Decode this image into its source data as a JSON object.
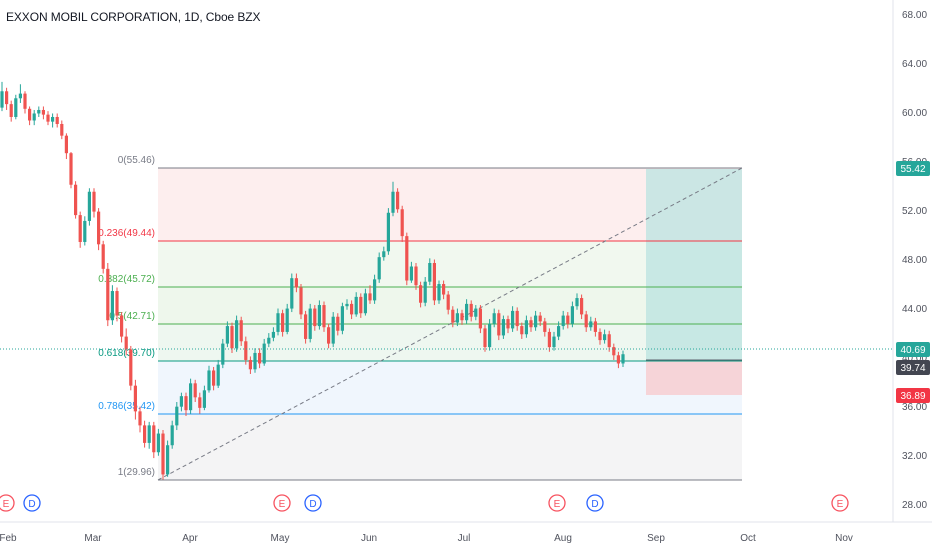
{
  "header": {
    "title": "EXXON MOBIL CORPORATION, 1D, Cboe BZX"
  },
  "colors": {
    "up": "#26a69a",
    "down": "#ef5350",
    "grid": "#e0e3eb",
    "text": "#131722",
    "axis_text": "#50535e",
    "fib_red": "#f23645",
    "fib_green": "#4caf50",
    "fib_blue": "#2196f3",
    "fib_gray": "#787b86",
    "current_price_bg": "#26a69a",
    "stop_bg": "#f23645",
    "entry_bg": "#434651"
  },
  "chart_data": {
    "type": "candlestick",
    "y_axis": {
      "range": [
        26.5,
        70.5
      ],
      "ticks": [
        "28.00",
        "32.00",
        "36.00",
        "40.00",
        "44.00",
        "48.00",
        "52.00",
        "56.00",
        "60.00",
        "64.00",
        "68.00"
      ]
    },
    "x_axis": {
      "labels": [
        "Feb",
        "Mar",
        "Apr",
        "May",
        "Jun",
        "Jul",
        "Aug",
        "Sep",
        "Oct",
        "Nov"
      ]
    },
    "price_labels": [
      {
        "text": "55.42",
        "kind": "target"
      },
      {
        "text": "40.69",
        "kind": "current"
      },
      {
        "text": "39.74",
        "kind": "entry"
      },
      {
        "text": "36.89",
        "kind": "stop"
      }
    ],
    "fibonacci": {
      "levels": [
        {
          "label": "0(55.46)",
          "price": 55.46,
          "color": "gray"
        },
        {
          "label": "0.236(49.44)",
          "price": 49.44,
          "color": "red"
        },
        {
          "label": "0.382(45.72)",
          "price": 45.72,
          "color": "green"
        },
        {
          "label": "0.5(42.71)",
          "price": 42.71,
          "color": "green"
        },
        {
          "label": "0.618(39.70)",
          "price": 39.7,
          "color": "teal"
        },
        {
          "label": "0.786(35.42)",
          "price": 35.42,
          "color": "blue"
        },
        {
          "label": "1(29.96)",
          "price": 29.96,
          "color": "gray"
        }
      ]
    },
    "position": {
      "entry": 39.74,
      "target": 55.42,
      "stop": 36.89
    },
    "events": [
      {
        "letter": "E",
        "kind": "earnings"
      },
      {
        "letter": "D",
        "kind": "dividend"
      },
      {
        "letter": "E",
        "kind": "earnings"
      },
      {
        "letter": "D",
        "kind": "dividend"
      },
      {
        "letter": "E",
        "kind": "earnings"
      },
      {
        "letter": "D",
        "kind": "dividend"
      },
      {
        "letter": "E",
        "kind": "earnings"
      }
    ],
    "candles": [
      [
        61.8,
        63.2,
        64.0,
        61.5
      ],
      [
        63.2,
        62.1,
        63.5,
        61.6
      ],
      [
        62.1,
        61.0,
        62.4,
        60.6
      ],
      [
        61.0,
        62.6,
        62.9,
        60.8
      ],
      [
        62.6,
        63.0,
        63.8,
        62.2
      ],
      [
        63.0,
        61.7,
        63.2,
        61.3
      ],
      [
        61.7,
        60.7,
        61.9,
        60.3
      ],
      [
        60.7,
        61.3,
        61.6,
        60.3
      ],
      [
        61.3,
        61.6,
        61.9,
        61.0
      ],
      [
        61.6,
        61.2,
        61.9,
        60.8
      ],
      [
        61.2,
        60.6,
        61.5,
        60.3
      ],
      [
        60.6,
        61.0,
        61.3,
        60.1
      ],
      [
        61.0,
        60.4,
        61.3,
        60.1
      ],
      [
        60.4,
        59.4,
        60.7,
        59.1
      ],
      [
        59.4,
        57.9,
        59.6,
        57.4
      ],
      [
        57.9,
        55.2,
        58.0,
        54.9
      ],
      [
        55.2,
        52.6,
        55.5,
        52.3
      ],
      [
        52.6,
        50.3,
        52.9,
        49.8
      ],
      [
        50.3,
        52.1,
        52.5,
        50.0
      ],
      [
        52.1,
        54.6,
        54.9,
        51.7
      ],
      [
        54.6,
        52.9,
        54.9,
        52.4
      ],
      [
        52.9,
        50.1,
        53.2,
        49.6
      ],
      [
        50.1,
        48.0,
        50.4,
        47.6
      ],
      [
        48.0,
        43.6,
        48.5,
        43.1
      ],
      [
        43.6,
        46.1,
        46.6,
        43.2
      ],
      [
        46.1,
        44.0,
        46.4,
        43.5
      ],
      [
        44.0,
        42.2,
        44.3,
        41.7
      ],
      [
        42.2,
        41.1,
        42.9,
        40.6
      ],
      [
        41.1,
        38.0,
        41.4,
        37.6
      ],
      [
        38.0,
        35.8,
        38.5,
        35.1
      ],
      [
        35.8,
        34.6,
        36.2,
        34.0
      ],
      [
        34.6,
        33.1,
        35.0,
        32.7
      ],
      [
        33.1,
        34.6,
        34.9,
        32.6
      ],
      [
        34.6,
        32.3,
        34.9,
        31.8
      ],
      [
        32.3,
        33.9,
        34.3,
        32.0
      ],
      [
        33.9,
        30.4,
        34.2,
        29.96
      ],
      [
        30.4,
        32.9,
        33.3,
        30.2
      ],
      [
        32.9,
        34.6,
        35.0,
        32.6
      ],
      [
        34.6,
        36.2,
        36.6,
        34.2
      ],
      [
        36.2,
        37.1,
        37.4,
        35.8
      ],
      [
        37.1,
        35.9,
        37.4,
        35.4
      ],
      [
        35.9,
        38.2,
        38.6,
        35.6
      ],
      [
        38.2,
        37.0,
        38.5,
        36.6
      ],
      [
        37.0,
        36.1,
        37.4,
        35.6
      ],
      [
        36.1,
        37.6,
        38.0,
        35.9
      ],
      [
        37.6,
        39.3,
        39.7,
        37.4
      ],
      [
        39.3,
        38.0,
        39.6,
        37.6
      ],
      [
        38.0,
        39.8,
        40.2,
        37.8
      ],
      [
        39.8,
        41.6,
        42.0,
        39.5
      ],
      [
        41.6,
        43.1,
        43.5,
        41.3
      ],
      [
        43.1,
        41.2,
        43.4,
        40.8
      ],
      [
        41.2,
        43.6,
        44.0,
        40.9
      ],
      [
        43.6,
        41.8,
        43.9,
        41.4
      ],
      [
        41.8,
        40.2,
        42.2,
        39.8
      ],
      [
        40.2,
        39.4,
        40.5,
        39.0
      ],
      [
        39.4,
        40.8,
        41.2,
        39.1
      ],
      [
        40.8,
        39.9,
        41.2,
        39.5
      ],
      [
        39.9,
        41.6,
        42.0,
        39.7
      ],
      [
        41.6,
        42.1,
        42.5,
        41.3
      ],
      [
        42.1,
        42.6,
        43.0,
        41.8
      ],
      [
        42.6,
        44.2,
        44.6,
        42.3
      ],
      [
        44.2,
        42.6,
        44.5,
        42.2
      ],
      [
        42.6,
        44.6,
        45.0,
        42.4
      ],
      [
        44.6,
        47.2,
        47.6,
        44.3
      ],
      [
        47.2,
        46.4,
        47.6,
        46.0
      ],
      [
        46.4,
        44.1,
        46.7,
        43.7
      ],
      [
        44.1,
        42.0,
        44.4,
        41.6
      ],
      [
        42.0,
        44.6,
        45.0,
        41.7
      ],
      [
        44.6,
        43.1,
        44.9,
        42.7
      ],
      [
        43.1,
        44.9,
        45.3,
        42.8
      ],
      [
        44.9,
        43.0,
        45.2,
        42.6
      ],
      [
        43.0,
        41.6,
        43.3,
        41.2
      ],
      [
        41.6,
        43.9,
        44.3,
        41.3
      ],
      [
        43.9,
        42.7,
        44.2,
        42.3
      ],
      [
        42.7,
        44.8,
        45.1,
        42.4
      ],
      [
        44.8,
        45.0,
        45.4,
        44.5
      ],
      [
        45.0,
        44.1,
        45.3,
        43.7
      ],
      [
        44.1,
        45.6,
        46.0,
        43.9
      ],
      [
        45.6,
        44.2,
        45.9,
        43.8
      ],
      [
        44.2,
        45.9,
        46.3,
        44.0
      ],
      [
        45.9,
        45.3,
        46.6,
        45.0
      ],
      [
        45.3,
        47.1,
        47.5,
        45.0
      ],
      [
        47.1,
        49.0,
        49.4,
        46.8
      ],
      [
        49.0,
        49.5,
        49.9,
        48.7
      ],
      [
        49.5,
        52.8,
        53.2,
        49.2
      ],
      [
        52.8,
        54.6,
        55.46,
        52.5
      ],
      [
        54.6,
        53.1,
        54.9,
        52.8
      ],
      [
        53.1,
        50.8,
        53.4,
        50.3
      ],
      [
        50.8,
        47.0,
        51.1,
        46.6
      ],
      [
        47.0,
        48.2,
        48.6,
        46.8
      ],
      [
        48.2,
        46.6,
        48.5,
        46.2
      ],
      [
        46.6,
        45.1,
        46.9,
        44.7
      ],
      [
        45.1,
        46.9,
        47.3,
        44.8
      ],
      [
        46.9,
        48.5,
        48.9,
        46.6
      ],
      [
        48.5,
        45.3,
        48.8,
        44.9
      ],
      [
        45.3,
        46.7,
        47.0,
        45.0
      ],
      [
        46.7,
        45.8,
        47.0,
        45.4
      ],
      [
        45.8,
        44.5,
        46.1,
        44.1
      ],
      [
        44.5,
        43.4,
        44.8,
        43.0
      ],
      [
        43.4,
        44.2,
        44.6,
        43.1
      ],
      [
        44.2,
        43.6,
        44.5,
        43.2
      ],
      [
        43.6,
        45.0,
        45.4,
        43.3
      ],
      [
        45.0,
        43.9,
        45.3,
        43.5
      ],
      [
        43.9,
        44.6,
        44.9,
        43.6
      ],
      [
        44.6,
        42.9,
        44.9,
        42.5
      ],
      [
        42.9,
        41.3,
        43.2,
        40.9
      ],
      [
        41.3,
        43.3,
        43.7,
        41.0
      ],
      [
        43.3,
        44.2,
        44.6,
        43.0
      ],
      [
        44.2,
        42.3,
        44.5,
        41.9
      ],
      [
        42.3,
        43.7,
        44.0,
        42.0
      ],
      [
        43.7,
        42.9,
        44.0,
        42.5
      ],
      [
        42.9,
        44.4,
        44.8,
        42.6
      ],
      [
        44.4,
        43.1,
        44.7,
        42.7
      ],
      [
        43.1,
        42.4,
        43.4,
        42.0
      ],
      [
        42.4,
        43.6,
        44.0,
        42.1
      ],
      [
        43.6,
        43.0,
        43.9,
        42.6
      ],
      [
        43.0,
        44.0,
        44.4,
        42.7
      ],
      [
        44.0,
        43.5,
        44.3,
        43.1
      ],
      [
        43.5,
        42.6,
        43.8,
        42.2
      ],
      [
        42.6,
        41.3,
        42.9,
        40.9
      ],
      [
        41.3,
        42.2,
        42.6,
        41.0
      ],
      [
        42.2,
        43.1,
        43.5,
        41.9
      ],
      [
        43.1,
        44.0,
        44.4,
        42.8
      ],
      [
        44.0,
        43.3,
        44.3,
        42.9
      ],
      [
        43.3,
        44.8,
        45.2,
        43.0
      ],
      [
        44.8,
        45.5,
        45.9,
        44.5
      ],
      [
        45.5,
        44.1,
        45.8,
        43.7
      ],
      [
        44.1,
        43.0,
        44.4,
        42.6
      ],
      [
        43.0,
        43.5,
        43.9,
        42.7
      ],
      [
        43.5,
        42.6,
        43.8,
        42.2
      ],
      [
        42.6,
        41.9,
        42.9,
        41.5
      ],
      [
        41.9,
        42.4,
        42.8,
        41.6
      ],
      [
        42.4,
        41.3,
        42.7,
        40.9
      ],
      [
        41.3,
        40.6,
        41.6,
        40.2
      ],
      [
        40.6,
        39.9,
        40.9,
        39.5
      ],
      [
        39.9,
        40.69,
        41.0,
        39.6
      ]
    ]
  }
}
